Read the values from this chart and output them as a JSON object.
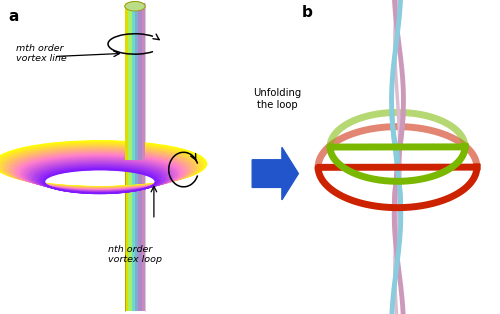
{
  "fig_width": 5.0,
  "fig_height": 3.14,
  "dpi": 100,
  "bg_color": "#ffffff",
  "label_a": "a",
  "label_b": "b",
  "arrow_color": "#2255cc",
  "arrow_text": "Unfolding\nthe loop",
  "text_mth": "mth order\nvortex line",
  "text_nth": "nth order\nvortex loop",
  "ring_red": "#cc2200",
  "ring_green": "#7ab800",
  "helix_pink": "#cc99bb",
  "helix_cyan": "#88ccdd",
  "tube_colors": [
    "#dddd00",
    "#aaee66",
    "#66ddcc",
    "#88aacc",
    "#aa88cc",
    "#cc88bb",
    "#dddd00"
  ],
  "torus_outer_color": "#dddd00",
  "torus_mid_color": "#88ccee",
  "torus_inner_color": "#cc88ee"
}
